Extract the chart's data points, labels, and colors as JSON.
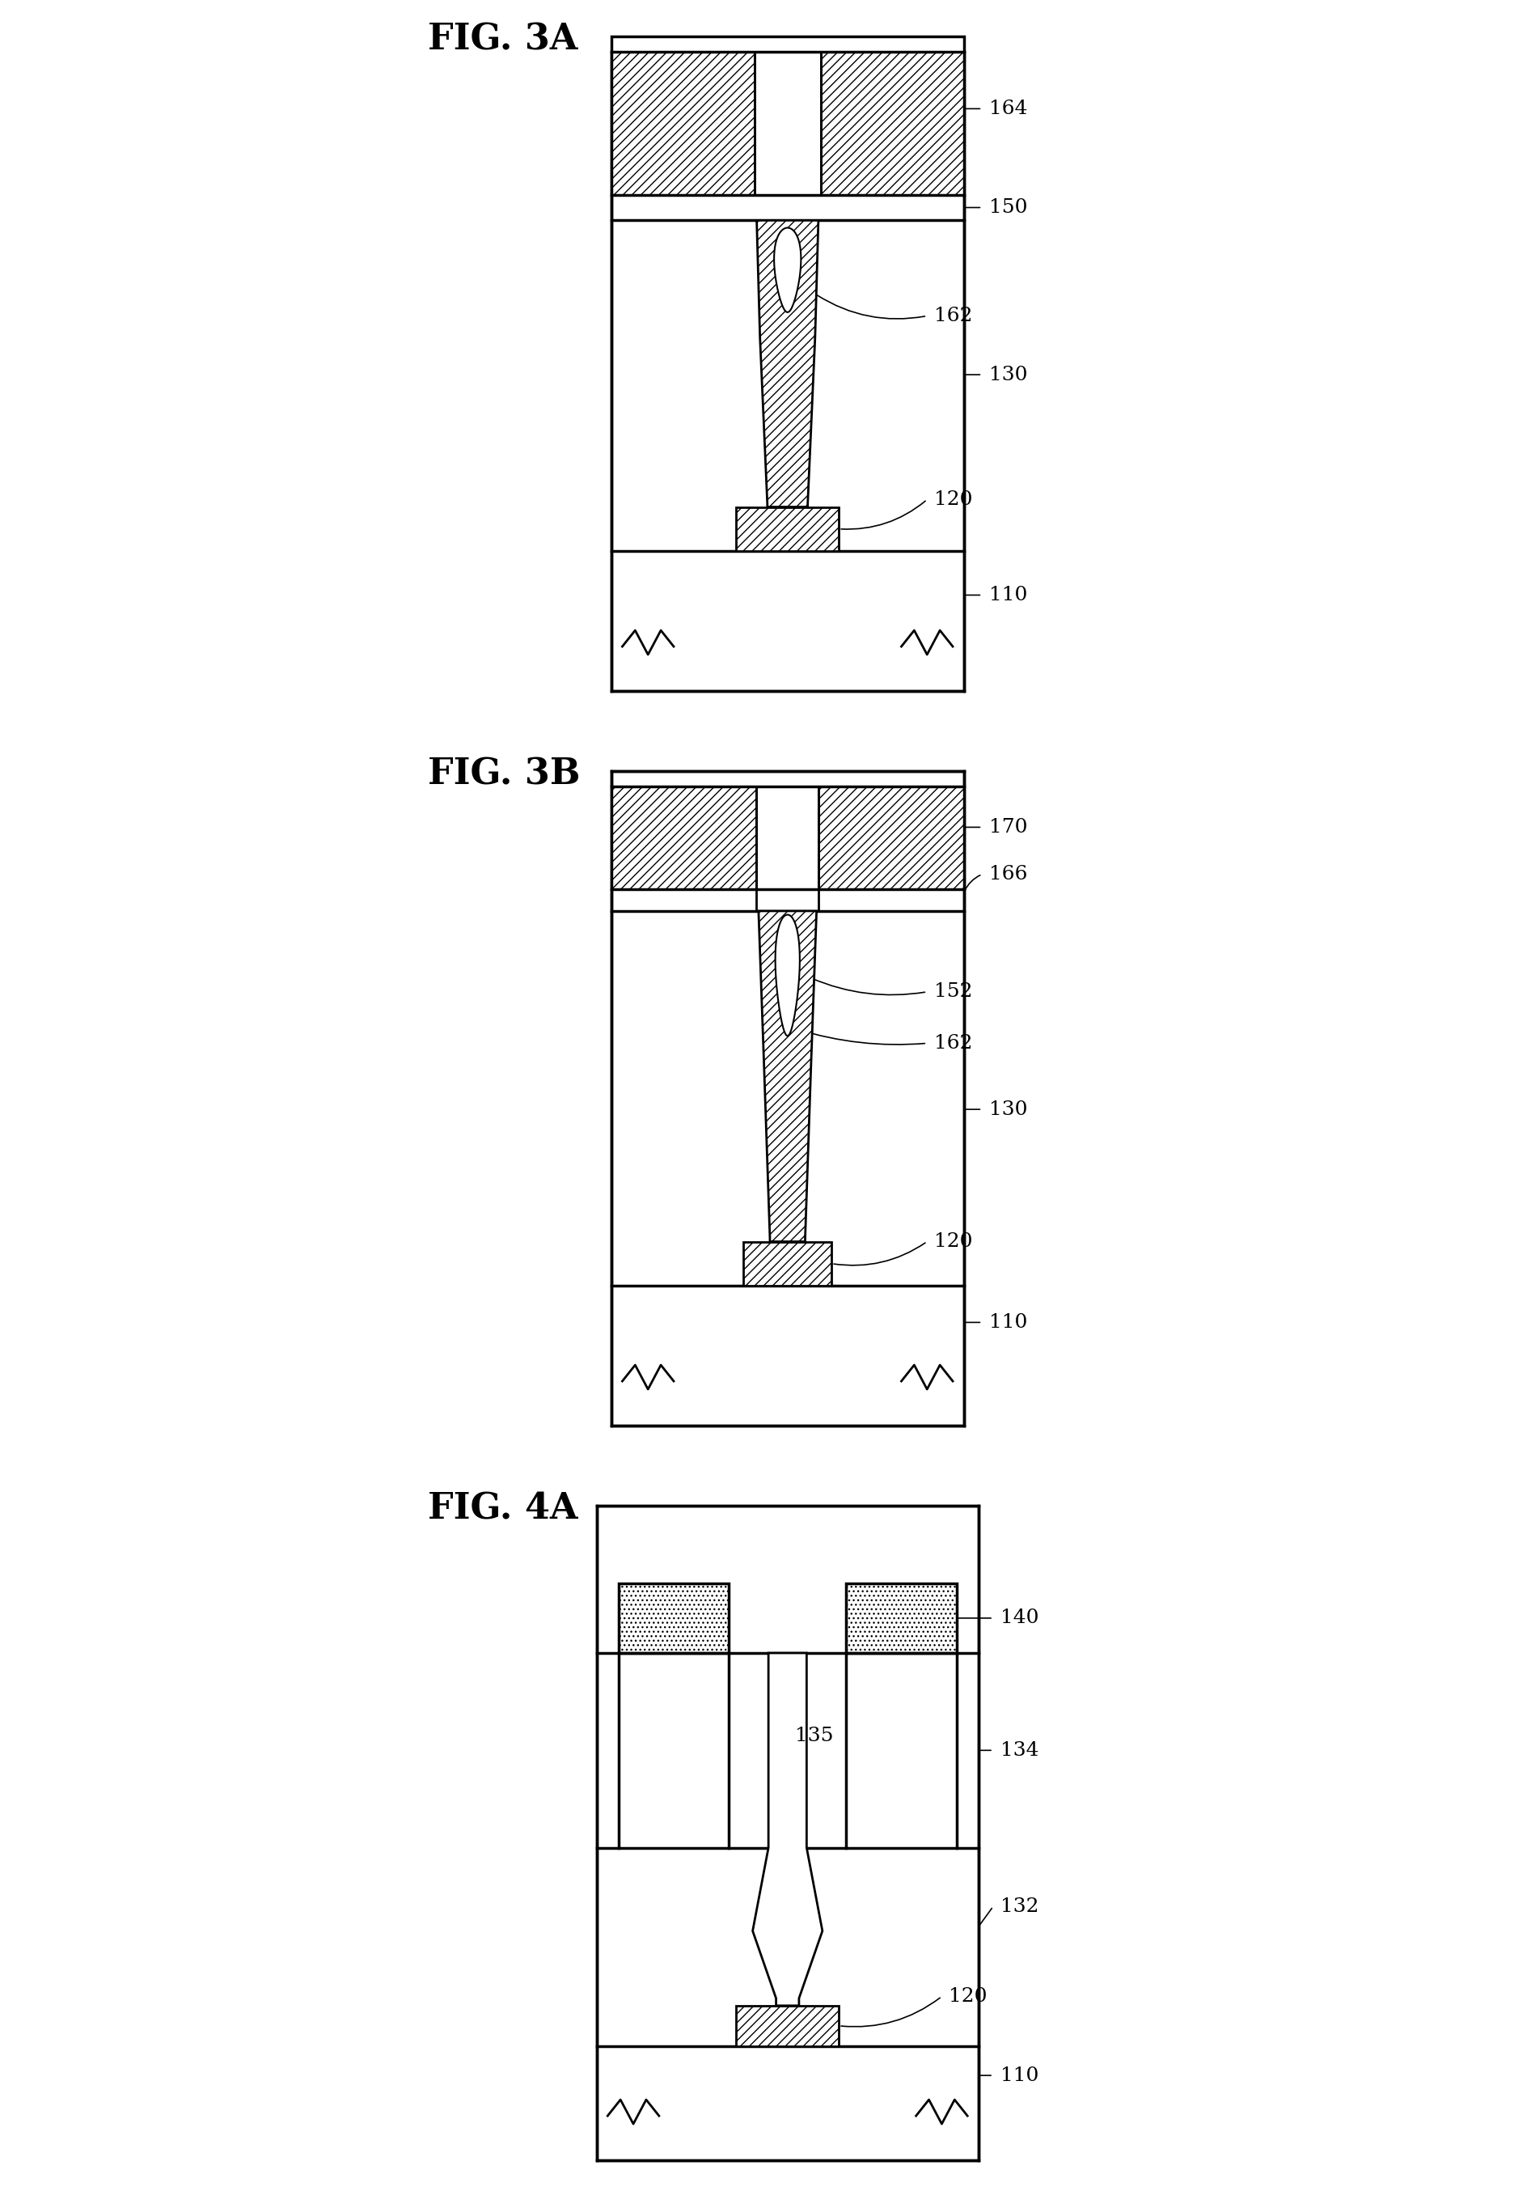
{
  "fig_labels": [
    "FIG. 3A",
    "FIG. 3B",
    "FIG. 4A"
  ],
  "background_color": "#ffffff",
  "lw": 2.0,
  "lw_thick": 2.5,
  "ref_fontsize": 18,
  "title_fontsize": 32
}
